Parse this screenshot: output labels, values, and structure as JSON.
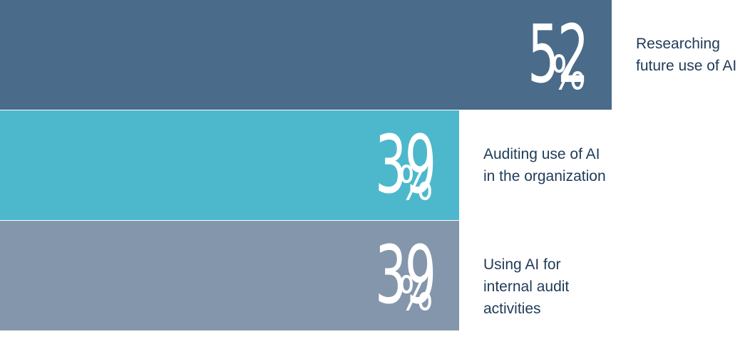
{
  "chart_data": {
    "type": "bar",
    "orientation": "horizontal",
    "unit": "%",
    "grid": false,
    "categories": [
      "Researching future use of AI",
      "Auditing use of AI in the organization",
      "Using AI for internal audit activities"
    ],
    "values": [
      52,
      39,
      39
    ],
    "value_labels": [
      "52",
      "39",
      "39"
    ],
    "percent_sign": "%",
    "colors": [
      "#4a6b8a",
      "#4db8cc",
      "#8396ab"
    ],
    "label_color": "#1f3b58",
    "value_text_color": "#ffffff",
    "xlim": [
      0,
      64
    ]
  }
}
